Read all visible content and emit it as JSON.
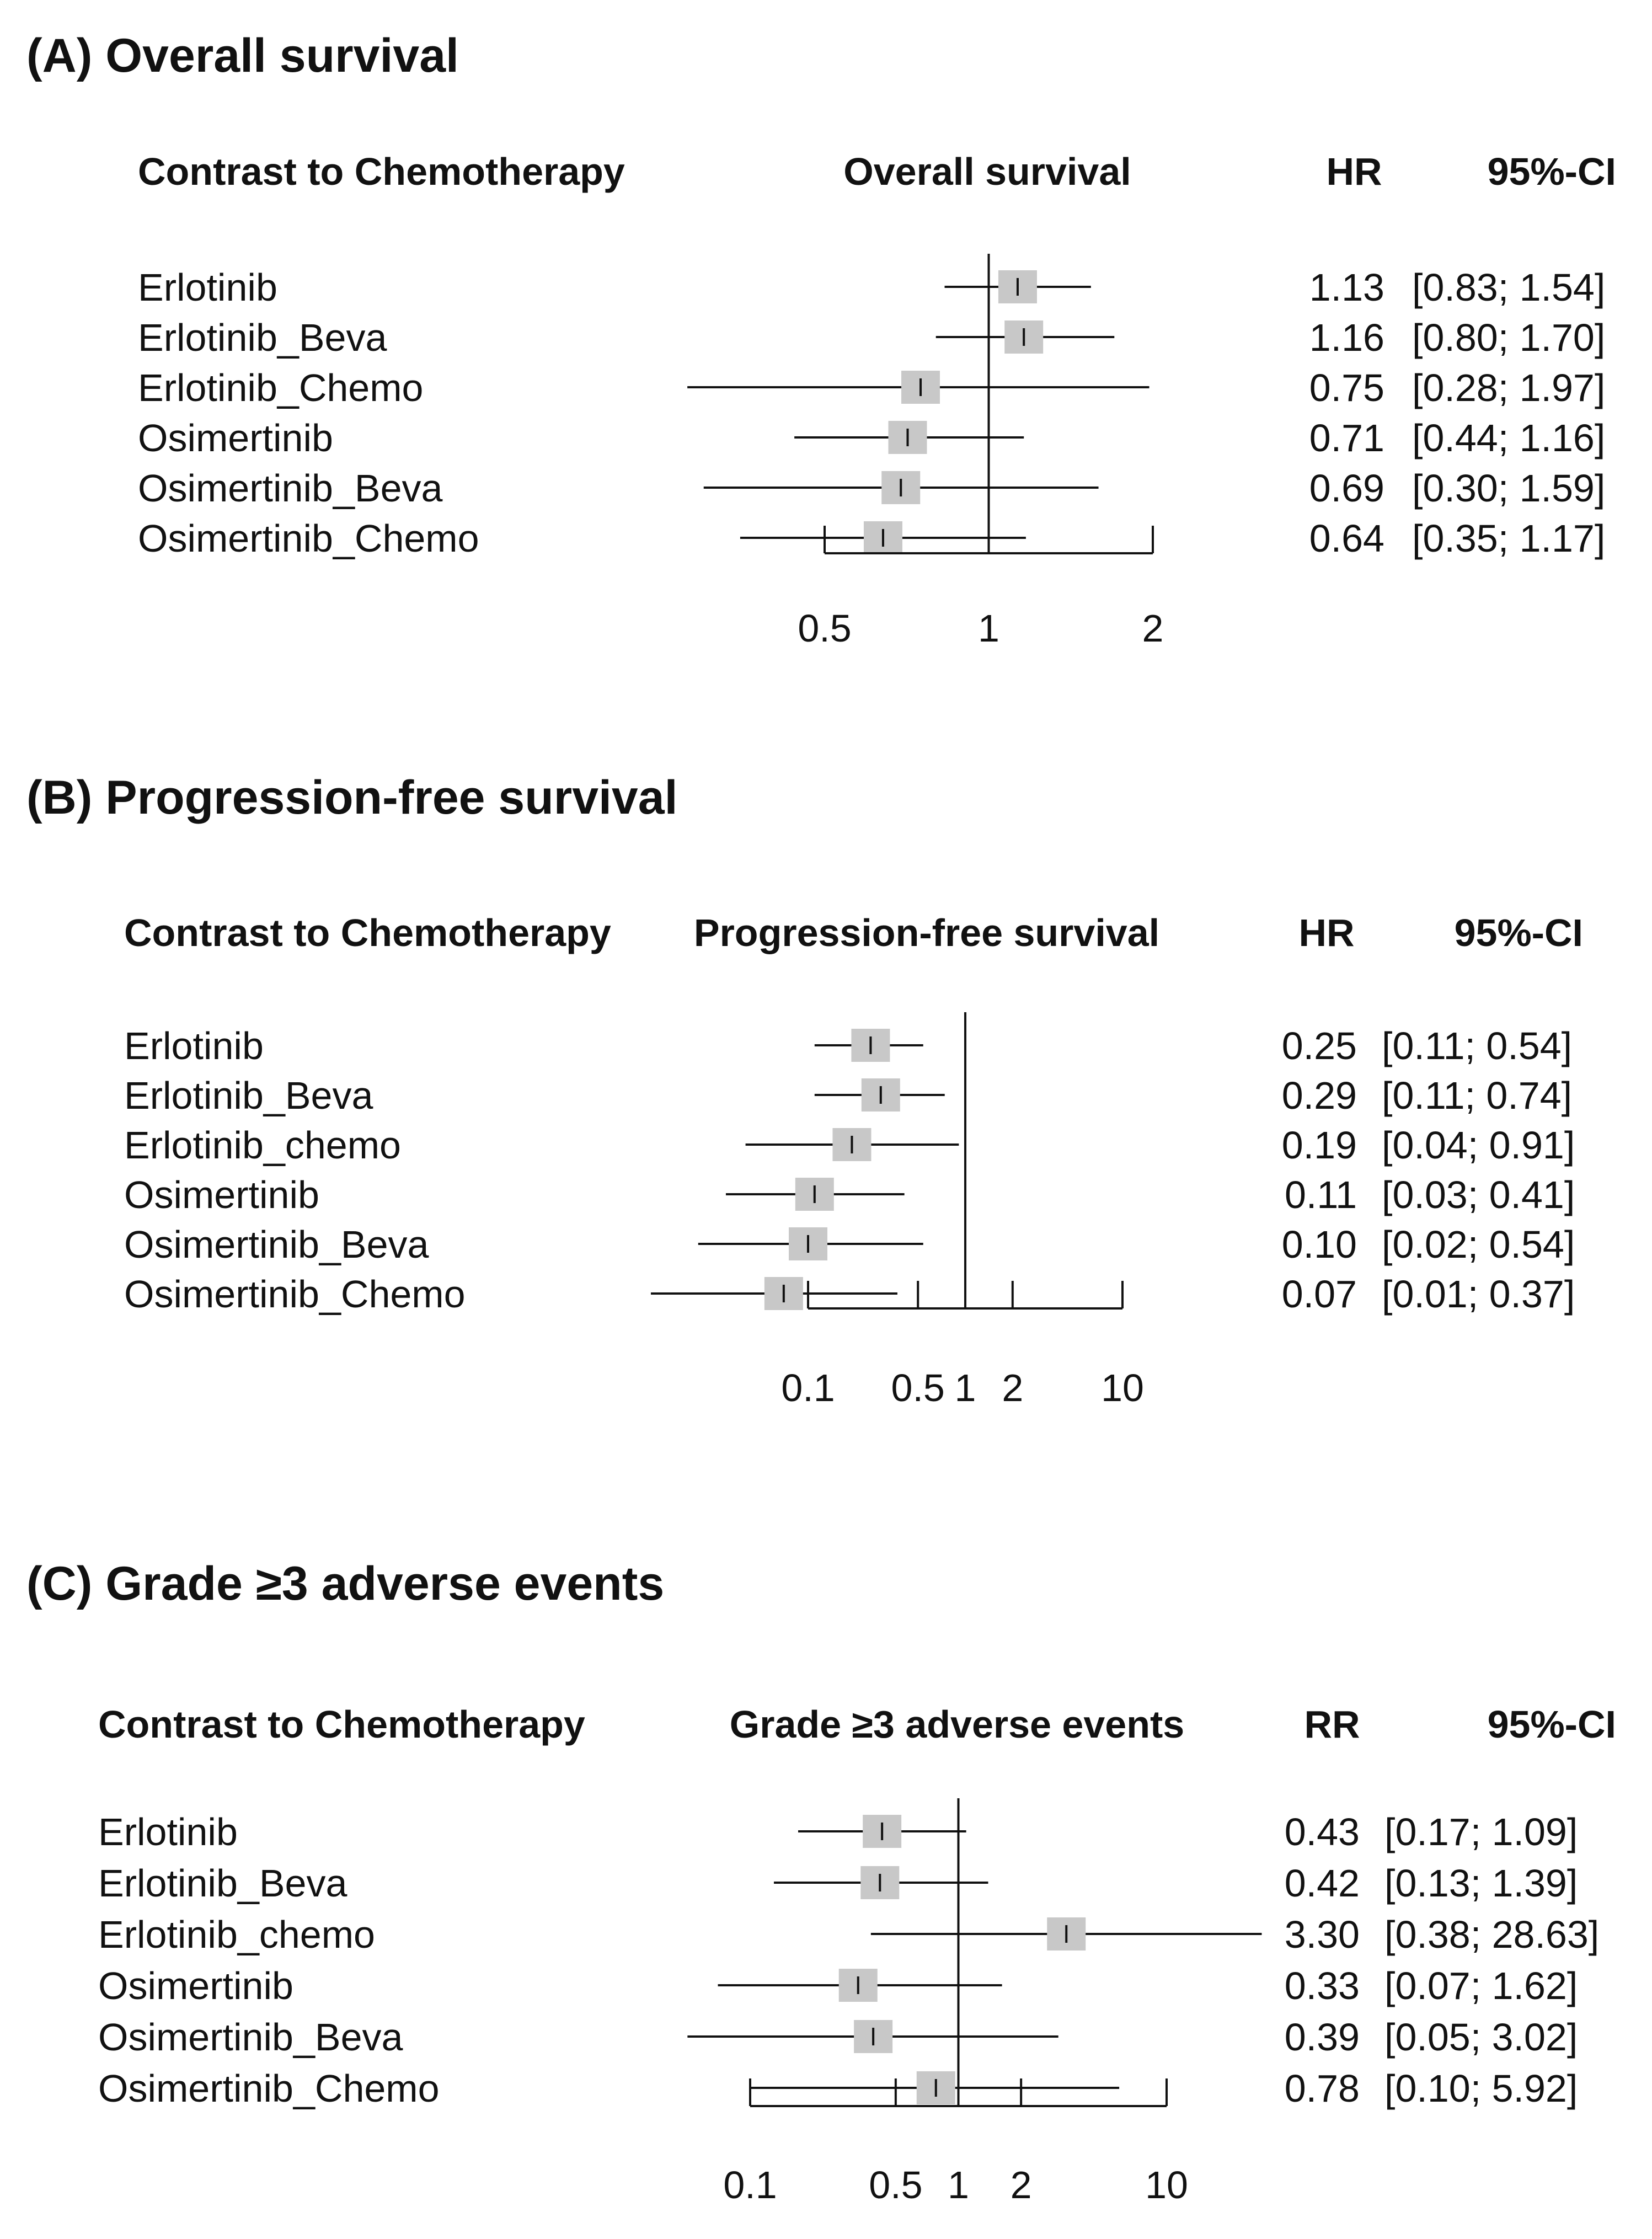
{
  "chart_data": [
    {
      "type": "forest",
      "title": "(A) Overall survival",
      "header_label": "Contrast to Chemotherapy",
      "header_plot": "Overall survival",
      "header_est": "HR",
      "header_ci": "95%-CI",
      "scale": "log",
      "ref_line": 1,
      "xlim": [
        0.5,
        2
      ],
      "ticks": [
        0.5,
        1,
        2
      ],
      "tick_labels": [
        "0.5",
        "1",
        "2"
      ],
      "rows": [
        {
          "label": "Erlotinib",
          "est": 1.13,
          "lo": 0.83,
          "hi": 1.54,
          "est_text": "1.13",
          "ci_text": "[0.83; 1.54]"
        },
        {
          "label": "Erlotinib_Beva",
          "est": 1.16,
          "lo": 0.8,
          "hi": 1.7,
          "est_text": "1.16",
          "ci_text": "[0.80; 1.70]"
        },
        {
          "label": "Erlotinib_Chemo",
          "est": 0.75,
          "lo": 0.28,
          "hi": 1.97,
          "est_text": "0.75",
          "ci_text": "[0.28; 1.97]"
        },
        {
          "label": "Osimertinib",
          "est": 0.71,
          "lo": 0.44,
          "hi": 1.16,
          "est_text": "0.71",
          "ci_text": "[0.44; 1.16]"
        },
        {
          "label": "Osimertinib_Beva",
          "est": 0.69,
          "lo": 0.3,
          "hi": 1.59,
          "est_text": "0.69",
          "ci_text": "[0.30; 1.59]"
        },
        {
          "label": "Osimertinib_Chemo",
          "est": 0.64,
          "lo": 0.35,
          "hi": 1.17,
          "est_text": "0.64",
          "ci_text": "[0.35; 1.17]"
        }
      ]
    },
    {
      "type": "forest",
      "title": "(B) Progression-free survival",
      "header_label": "Contrast to Chemotherapy",
      "header_plot": "Progression-free survival",
      "header_est": "HR",
      "header_ci": "95%-CI",
      "scale": "log",
      "ref_line": 1,
      "xlim": [
        0.1,
        10
      ],
      "ticks": [
        0.1,
        0.5,
        1,
        2,
        10
      ],
      "tick_labels": [
        "0.1",
        "0.5",
        "1",
        "2",
        "10"
      ],
      "rows": [
        {
          "label": "Erlotinib",
          "est": 0.25,
          "lo": 0.11,
          "hi": 0.54,
          "est_text": "0.25",
          "ci_text": "[0.11; 0.54]"
        },
        {
          "label": "Erlotinib_Beva",
          "est": 0.29,
          "lo": 0.11,
          "hi": 0.74,
          "est_text": "0.29",
          "ci_text": "[0.11; 0.74]"
        },
        {
          "label": "Erlotinib_chemo",
          "est": 0.19,
          "lo": 0.04,
          "hi": 0.91,
          "est_text": "0.19",
          "ci_text": "[0.04; 0.91]"
        },
        {
          "label": "Osimertinib",
          "est": 0.11,
          "lo": 0.03,
          "hi": 0.41,
          "est_text": "0.11",
          "ci_text": "[0.03; 0.41]"
        },
        {
          "label": "Osimertinib_Beva",
          "est": 0.1,
          "lo": 0.02,
          "hi": 0.54,
          "est_text": "0.10",
          "ci_text": "[0.02; 0.54]"
        },
        {
          "label": "Osimertinib_Chemo",
          "est": 0.07,
          "lo": 0.01,
          "hi": 0.37,
          "est_text": "0.07",
          "ci_text": "[0.01; 0.37]"
        }
      ]
    },
    {
      "type": "forest",
      "title": "(C) Grade ≥3 adverse events",
      "header_label": "Contrast to Chemotherapy",
      "header_plot": "Grade ≥3 adverse events",
      "header_est": "RR",
      "header_ci": "95%-CI",
      "scale": "log",
      "ref_line": 1,
      "xlim": [
        0.1,
        10
      ],
      "ticks": [
        0.1,
        0.5,
        1,
        2,
        10
      ],
      "tick_labels": [
        "0.1",
        "0.5",
        "1",
        "2",
        "10"
      ],
      "rows": [
        {
          "label": "Erlotinib",
          "est": 0.43,
          "lo": 0.17,
          "hi": 1.09,
          "est_text": "0.43",
          "ci_text": "[0.17;  1.09]"
        },
        {
          "label": "Erlotinib_Beva",
          "est": 0.42,
          "lo": 0.13,
          "hi": 1.39,
          "est_text": "0.42",
          "ci_text": "[0.13;  1.39]"
        },
        {
          "label": "Erlotinib_chemo",
          "est": 3.3,
          "lo": 0.38,
          "hi": 28.63,
          "est_text": "3.30",
          "ci_text": "[0.38; 28.63]"
        },
        {
          "label": "Osimertinib",
          "est": 0.33,
          "lo": 0.07,
          "hi": 1.62,
          "est_text": "0.33",
          "ci_text": "[0.07;  1.62]"
        },
        {
          "label": "Osimertinib_Beva",
          "est": 0.39,
          "lo": 0.05,
          "hi": 3.02,
          "est_text": "0.39",
          "ci_text": "[0.05;  3.02]"
        },
        {
          "label": "Osimertinib_Chemo",
          "est": 0.78,
          "lo": 0.1,
          "hi": 5.92,
          "est_text": "0.78",
          "ci_text": "[0.10;  5.92]"
        }
      ]
    }
  ],
  "colors": {
    "text": "#111111",
    "line": "#111111",
    "box": "#c8c8c8"
  }
}
